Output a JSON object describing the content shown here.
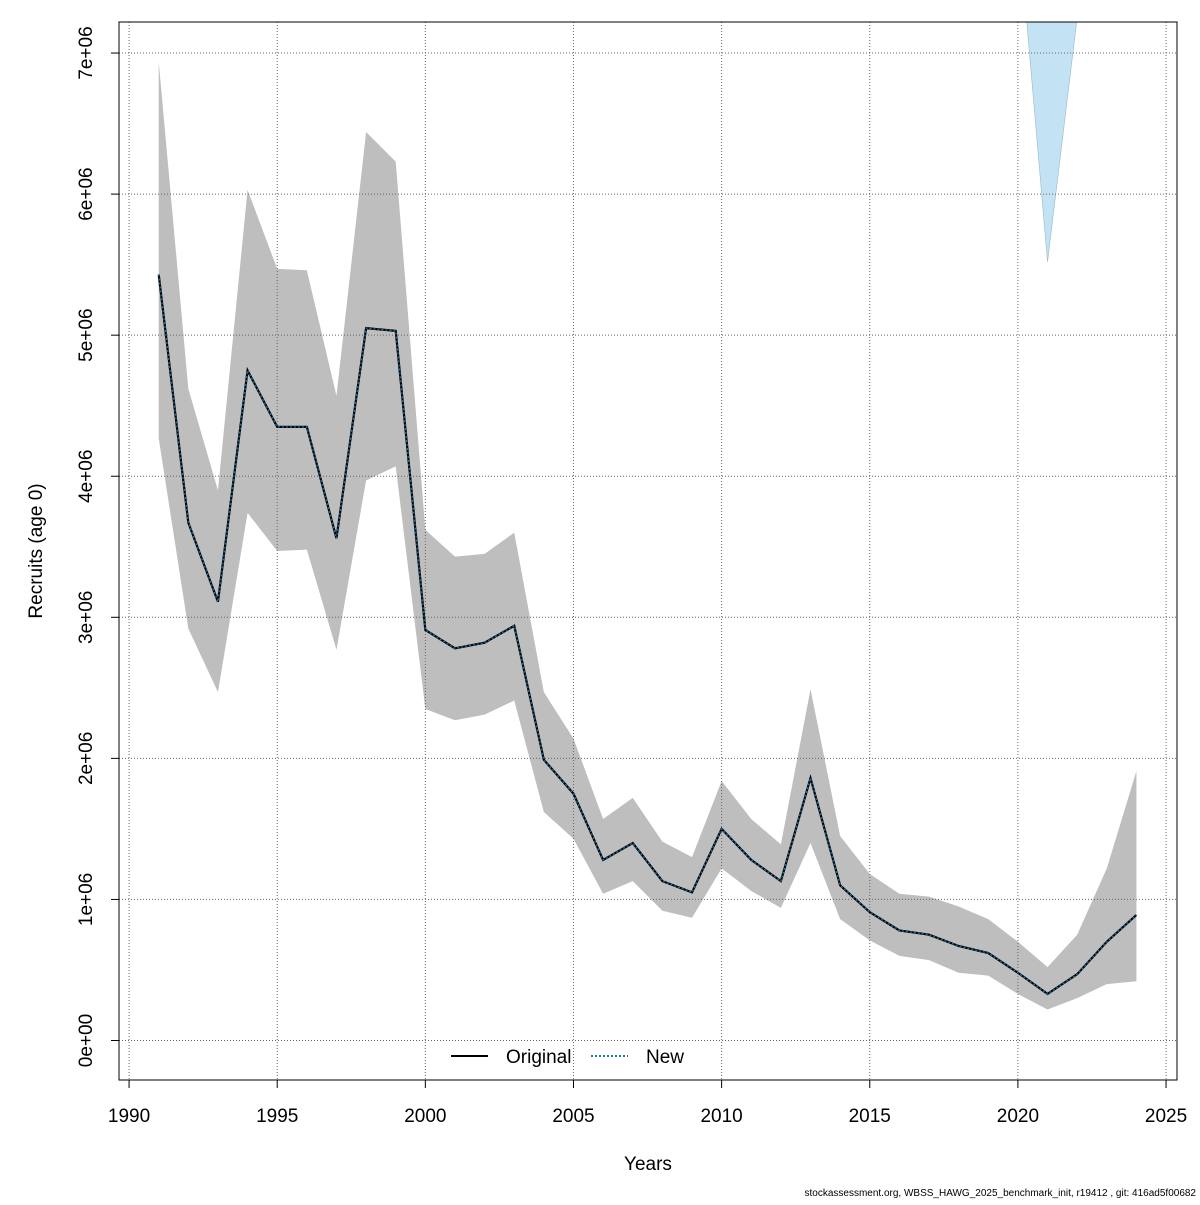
{
  "chart_data": {
    "type": "line",
    "title": "",
    "xlabel": "Years",
    "ylabel": "Recruits (age 0)",
    "xlim": [
      1989.66,
      2025.37
    ],
    "ylim": [
      -280000,
      7220000
    ],
    "grid": true,
    "x_ticks": [
      1990,
      1995,
      2000,
      2005,
      2010,
      2015,
      2020,
      2025
    ],
    "x_tick_labels": [
      "1990",
      "1995",
      "2000",
      "2005",
      "2010",
      "2015",
      "2020",
      "2025"
    ],
    "y_ticks": [
      0,
      1000000,
      2000000,
      3000000,
      4000000,
      5000000,
      6000000,
      7000000
    ],
    "y_tick_labels": [
      "0e+00",
      "1e+06",
      "2e+06",
      "3e+06",
      "4e+06",
      "5e+06",
      "6e+06",
      "7e+06"
    ],
    "legend": {
      "placement": "bottom",
      "entries": [
        {
          "label": "Original",
          "color": "#000000",
          "style": "solid"
        },
        {
          "label": "New",
          "color": "#1f77b4",
          "style": "dotted"
        }
      ]
    },
    "x": [
      1991,
      1992,
      1993,
      1994,
      1995,
      1996,
      1997,
      1998,
      1999,
      2000,
      2001,
      2002,
      2003,
      2004,
      2005,
      2006,
      2007,
      2008,
      2009,
      2010,
      2011,
      2012,
      2013,
      2014,
      2015,
      2016,
      2017,
      2018,
      2019,
      2020,
      2021,
      2022,
      2023,
      2024
    ],
    "series": [
      {
        "name": "Original",
        "color": "#000000",
        "values": [
          5430000,
          3670000,
          3110000,
          4750000,
          4350000,
          4350000,
          3560000,
          5050000,
          5030000,
          2910000,
          2780000,
          2820000,
          2940000,
          1990000,
          1750000,
          1280000,
          1400000,
          1130000,
          1050000,
          1500000,
          1280000,
          1130000,
          1860000,
          1100000,
          910000,
          780000,
          750000,
          670000,
          620000,
          480000,
          330000,
          470000,
          700000,
          890000
        ],
        "upper": [
          6940000,
          4620000,
          3900000,
          6030000,
          5470000,
          5460000,
          4570000,
          6440000,
          6230000,
          3620000,
          3430000,
          3450000,
          3600000,
          2470000,
          2140000,
          1570000,
          1720000,
          1410000,
          1300000,
          1840000,
          1570000,
          1390000,
          2490000,
          1450000,
          1180000,
          1040000,
          1020000,
          950000,
          860000,
          700000,
          520000,
          750000,
          1220000,
          1910000
        ],
        "lower": [
          4270000,
          2920000,
          2470000,
          3740000,
          3470000,
          3480000,
          2770000,
          3970000,
          4070000,
          2350000,
          2270000,
          2310000,
          2410000,
          1620000,
          1430000,
          1040000,
          1130000,
          920000,
          870000,
          1220000,
          1060000,
          940000,
          1400000,
          860000,
          710000,
          600000,
          570000,
          480000,
          460000,
          330000,
          220000,
          300000,
          400000,
          420000
        ]
      },
      {
        "name": "New",
        "color": "#1f77b4",
        "style": "dotted",
        "values": [
          5430000,
          3670000,
          3110000,
          4750000,
          4350000,
          4350000,
          3560000,
          5050000,
          5030000,
          2910000,
          2780000,
          2820000,
          2940000,
          1990000,
          1750000,
          1280000,
          1400000,
          1130000,
          1050000,
          1500000,
          1280000,
          1130000,
          1860000,
          1100000,
          910000,
          780000,
          750000,
          670000,
          620000,
          480000,
          330000,
          470000,
          700000,
          890000
        ],
        "band_x": [
          2020,
          2021,
          2022
        ],
        "band_lower": [
          7950000,
          5520000,
          7250000
        ],
        "band_color": "#c3e3f4"
      }
    ],
    "band_color": "#bebebe"
  },
  "footer": "stockassessment.org, WBSS_HAWG_2025_benchmark_init, r19412 , git: 416ad5f00682"
}
